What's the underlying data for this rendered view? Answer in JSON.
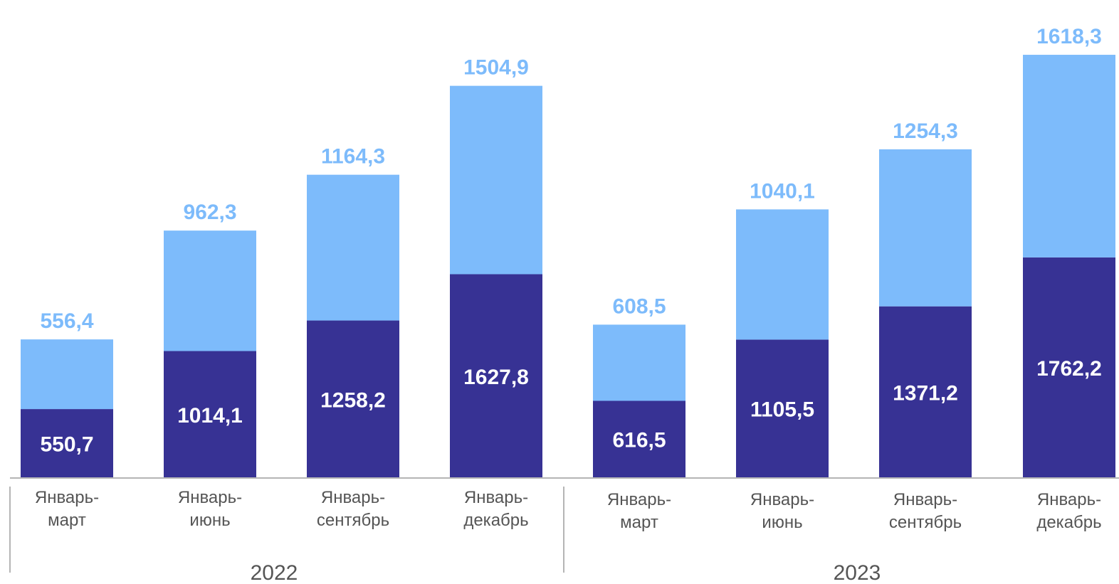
{
  "chart_data": {
    "type": "bar",
    "stacked": true,
    "groups": [
      {
        "label": "2022",
        "categories": [
          "Январь-\nмарт",
          "Январь-\nиюнь",
          "Январь-\nсентябрь",
          "Январь-\nдекабрь"
        ]
      },
      {
        "label": "2023",
        "categories": [
          "Январь-\nмарт",
          "Январь-\nиюнь",
          "Январь-\nсентябрь",
          "Январь-\nдекабрь"
        ]
      }
    ],
    "series": [
      {
        "values": [
          550.7,
          1014.1,
          1258.2,
          1627.8,
          616.5,
          1105.5,
          1371.2,
          1762.2
        ],
        "labels": [
          "550,7",
          "1014,1",
          "1258,2",
          "1627,8",
          "616,5",
          "1105,5",
          "1371,2",
          "1762,2"
        ],
        "color": "#373294",
        "label_color": "#ffffff"
      },
      {
        "values": [
          556.4,
          962.3,
          1164.3,
          1504.9,
          608.5,
          1040.1,
          1254.3,
          1618.3
        ],
        "labels": [
          "556,4",
          "962,3",
          "1164,3",
          "1504,9",
          "608,5",
          "1040,1",
          "1254,3",
          "1618,3"
        ],
        "color": "#7dbbfb",
        "label_color": "#7dbbfb"
      }
    ],
    "ylim": [
      0,
      3500
    ],
    "grid": false,
    "legend": "none",
    "axis_color": "#b5b5b5",
    "text_color": "#555555"
  }
}
